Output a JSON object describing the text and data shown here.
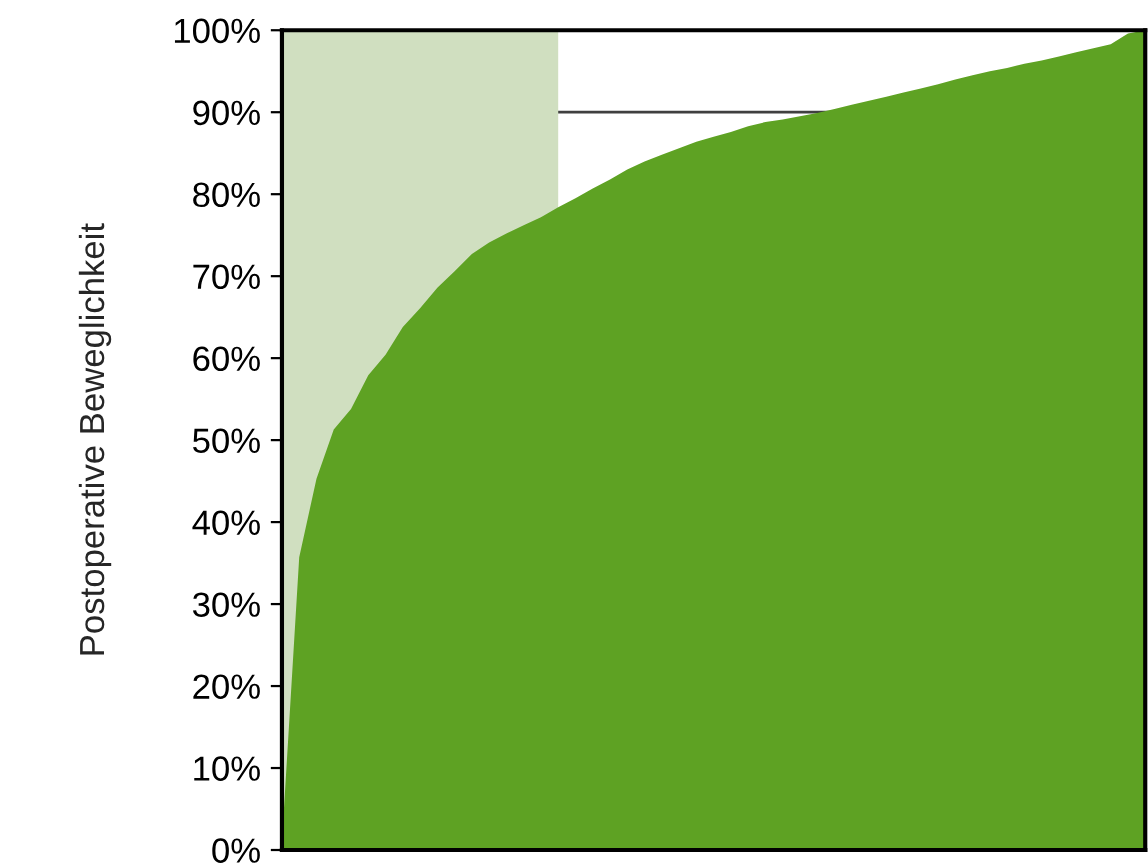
{
  "chart_data": {
    "type": "area",
    "ylabel": "Postoperative Beweglichkeit",
    "categories": [
      null,
      null,
      null,
      null,
      null,
      null,
      null,
      null,
      null,
      null,
      null,
      null,
      null,
      null,
      null,
      null,
      null,
      null,
      null,
      null,
      null,
      null,
      null,
      null,
      null,
      null,
      null,
      null,
      null,
      null,
      null,
      null,
      null,
      null,
      null,
      null,
      null,
      null,
      null,
      null,
      null,
      null,
      null,
      null,
      null,
      null,
      null,
      null,
      null,
      null,
      null
    ],
    "series": [
      {
        "color": "#d0dfc0",
        "values": [
          100,
          100,
          100,
          100,
          100,
          100,
          100,
          100,
          100,
          100,
          100,
          100,
          100,
          100,
          100,
          100,
          100,
          null,
          null,
          null,
          null,
          null,
          null,
          null,
          null,
          null,
          null,
          null,
          null,
          null,
          null,
          null,
          null,
          null,
          null,
          null,
          null,
          null,
          null,
          null,
          null,
          null,
          null,
          null,
          null,
          null,
          null,
          null,
          null,
          null,
          null
        ]
      },
      {
        "color": "#5ea223",
        "values": [
          1,
          35.7,
          45.3,
          51.3,
          53.8,
          57.9,
          60.4,
          63.8,
          66.1,
          68.6,
          70.6,
          72.7,
          74.1,
          75.2,
          76.2,
          77.2,
          78.4,
          79.5,
          80.7,
          81.8,
          83.0,
          84.0,
          84.8,
          85.6,
          86.4,
          87.0,
          87.6,
          88.3,
          88.8,
          89.1,
          89.5,
          89.9,
          90.4,
          90.9,
          91.4,
          91.9,
          92.4,
          92.9,
          93.4,
          94.0,
          94.5,
          95.0,
          95.4,
          95.9,
          96.3,
          96.8,
          97.3,
          97.8,
          98.3,
          99.6,
          100
        ]
      }
    ],
    "ylim": [
      0,
      100
    ],
    "yticks": [
      {
        "value": 0,
        "label": "0%"
      },
      {
        "value": 10,
        "label": "10%"
      },
      {
        "value": 20,
        "label": "20%"
      },
      {
        "value": 30,
        "label": "30%"
      },
      {
        "value": 40,
        "label": "40%"
      },
      {
        "value": 50,
        "label": "50%"
      },
      {
        "value": 60,
        "label": "60%"
      },
      {
        "value": 70,
        "label": "70%"
      },
      {
        "value": 80,
        "label": "80%"
      },
      {
        "value": 90,
        "label": "90%"
      },
      {
        "value": 100,
        "label": "100%"
      }
    ],
    "tick_labels": "y",
    "ref_lines": [
      {
        "axis": "y",
        "value": 90,
        "color": "#404040",
        "line_style": "solid"
      }
    ],
    "grid": false,
    "legend": false
  }
}
